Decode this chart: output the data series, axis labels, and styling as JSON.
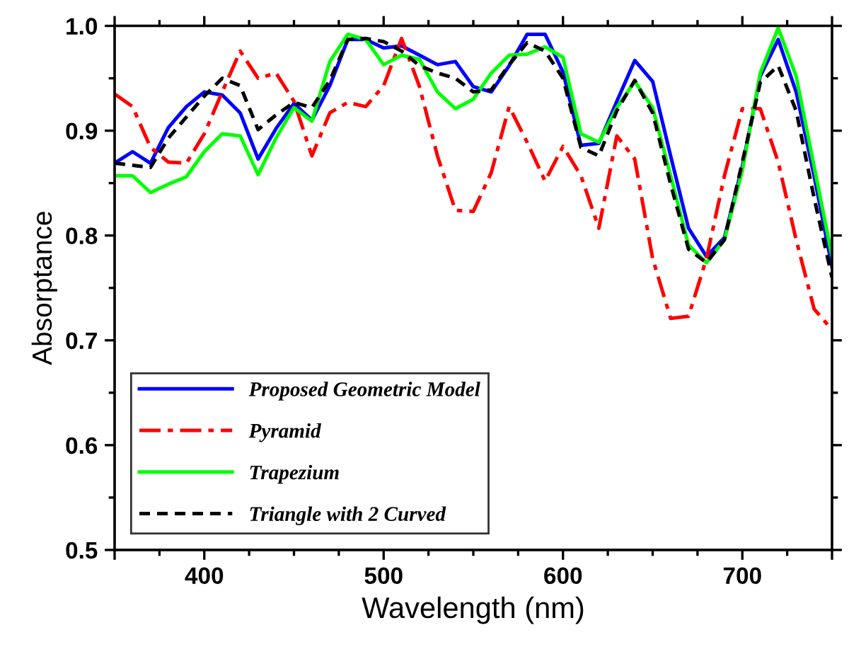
{
  "chart_data": {
    "type": "line",
    "xlabel": "Wavelength (nm)",
    "ylabel": "Absorptance",
    "x": [
      350,
      360,
      370,
      380,
      390,
      400,
      410,
      420,
      430,
      440,
      450,
      460,
      470,
      480,
      490,
      500,
      510,
      520,
      530,
      540,
      550,
      560,
      570,
      580,
      590,
      600,
      610,
      620,
      630,
      640,
      650,
      660,
      670,
      680,
      690,
      700,
      710,
      720,
      730,
      740,
      750
    ],
    "series": [
      {
        "name": "Proposed Geometric Model",
        "color": "#0000ff",
        "line_style": "solid",
        "values": [
          0.869,
          0.88,
          0.869,
          0.903,
          0.923,
          0.937,
          0.934,
          0.917,
          0.873,
          0.902,
          0.926,
          0.91,
          0.943,
          0.987,
          0.987,
          0.979,
          0.981,
          0.972,
          0.963,
          0.966,
          0.942,
          0.937,
          0.962,
          0.992,
          0.992,
          0.956,
          0.886,
          0.888,
          0.928,
          0.967,
          0.947,
          0.876,
          0.807,
          0.78,
          0.798,
          0.866,
          0.952,
          0.987,
          0.937,
          0.857,
          0.77
        ]
      },
      {
        "name": "Pyramid",
        "color": "#ff0000",
        "line_style": "dashdot",
        "values": [
          0.935,
          0.923,
          0.884,
          0.87,
          0.869,
          0.897,
          0.937,
          0.976,
          0.95,
          0.955,
          0.928,
          0.876,
          0.917,
          0.927,
          0.923,
          0.943,
          0.988,
          0.942,
          0.876,
          0.824,
          0.823,
          0.86,
          0.923,
          0.889,
          0.852,
          0.885,
          0.857,
          0.807,
          0.895,
          0.873,
          0.778,
          0.721,
          0.723,
          0.778,
          0.857,
          0.921,
          0.921,
          0.87,
          0.796,
          0.73,
          0.71
        ]
      },
      {
        "name": "Trapezium",
        "color": "#00ff00",
        "line_style": "solid",
        "values": [
          0.857,
          0.857,
          0.841,
          0.849,
          0.856,
          0.88,
          0.897,
          0.895,
          0.858,
          0.893,
          0.922,
          0.909,
          0.966,
          0.992,
          0.987,
          0.963,
          0.972,
          0.968,
          0.937,
          0.921,
          0.93,
          0.955,
          0.972,
          0.973,
          0.98,
          0.97,
          0.897,
          0.889,
          0.922,
          0.947,
          0.922,
          0.857,
          0.791,
          0.774,
          0.796,
          0.862,
          0.955,
          0.998,
          0.952,
          0.866,
          0.78
        ]
      },
      {
        "name": "Triangle with 2 Curved",
        "color": "#000000",
        "line_style": "dashed",
        "values": [
          0.869,
          0.867,
          0.865,
          0.893,
          0.913,
          0.933,
          0.95,
          0.943,
          0.901,
          0.915,
          0.927,
          0.922,
          0.948,
          0.987,
          0.988,
          0.985,
          0.976,
          0.962,
          0.955,
          0.95,
          0.937,
          0.939,
          0.963,
          0.984,
          0.976,
          0.95,
          0.884,
          0.876,
          0.919,
          0.948,
          0.917,
          0.849,
          0.787,
          0.774,
          0.796,
          0.87,
          0.946,
          0.962,
          0.919,
          0.836,
          0.76
        ]
      }
    ],
    "xlim": [
      350,
      750
    ],
    "xticks": [
      {
        "value": 350,
        "label": null
      },
      400,
      500,
      600,
      700,
      {
        "value": 750,
        "label": null
      }
    ],
    "ylim": [
      0.5,
      1.0
    ],
    "yticks": [
      0.5,
      0.6,
      0.7,
      0.8,
      0.9,
      {
        "value": 1.0,
        "label": "1.0"
      }
    ],
    "grid": false,
    "legend": "lower left",
    "marker": "none"
  }
}
